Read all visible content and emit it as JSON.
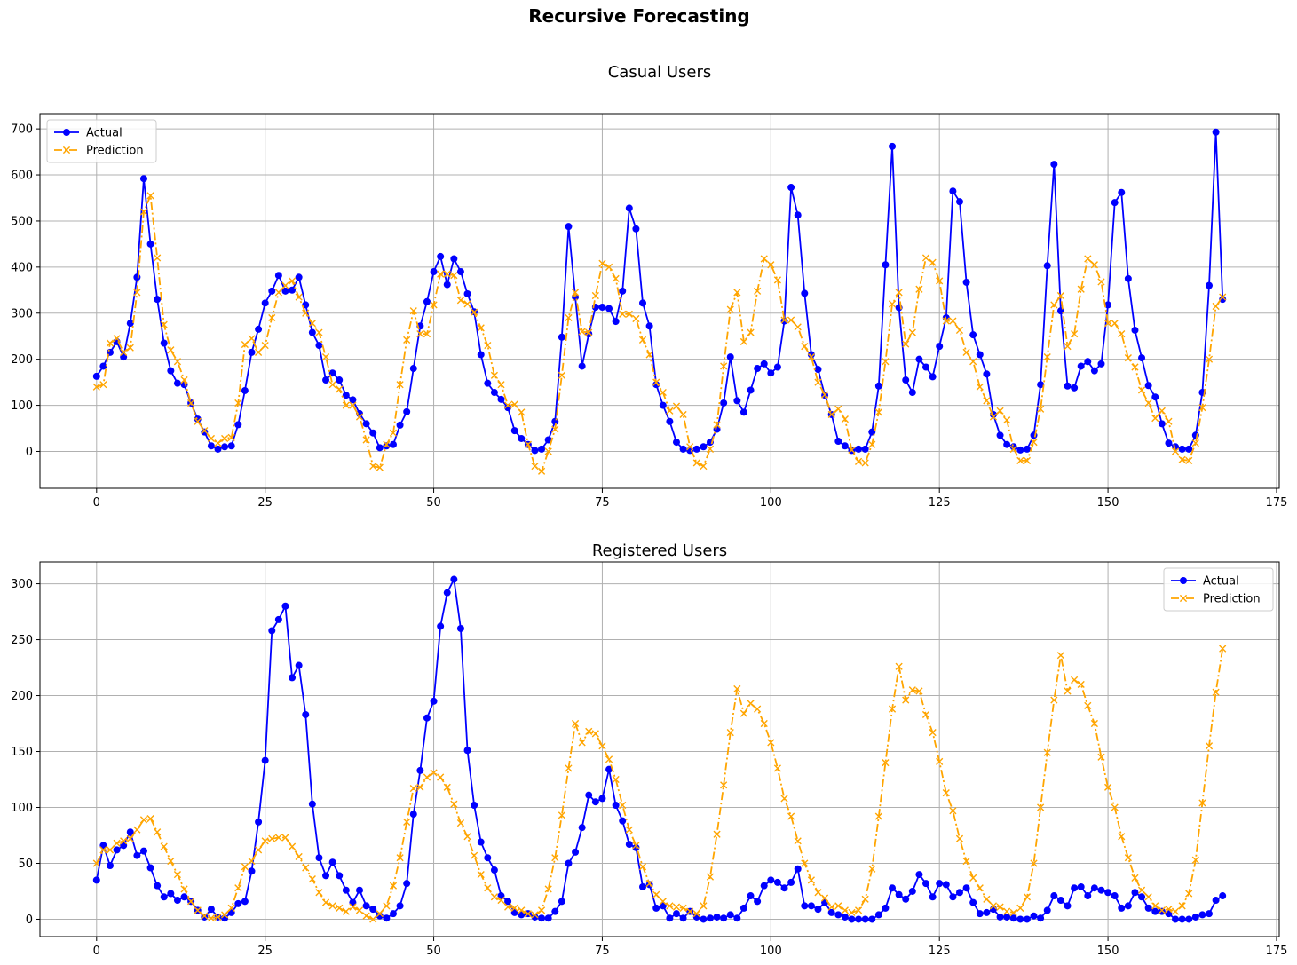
{
  "figure": {
    "suptitle": "Recursive Forecasting"
  },
  "legend_labels": {
    "actual": "Actual",
    "prediction": "Prediction"
  },
  "colors": {
    "actual": "#0000ff",
    "prediction": "#ffa500",
    "grid": "#b0b0b0",
    "axes": "#000000"
  },
  "chart_data": [
    {
      "type": "line",
      "title": "Casual Users",
      "xlabel": "",
      "ylabel": "",
      "xlim": [
        -8.4,
        175.4
      ],
      "ylim": [
        -80,
        733
      ],
      "xticks": [
        0,
        25,
        50,
        75,
        100,
        125,
        150,
        175
      ],
      "yticks": [
        0,
        100,
        200,
        300,
        400,
        500,
        600,
        700
      ],
      "grid": true,
      "legend_position": "upper-left",
      "series": [
        {
          "name": "Actual",
          "style": "solid-circle",
          "values": [
            163,
            185,
            215,
            238,
            205,
            278,
            378,
            592,
            450,
            330,
            235,
            175,
            148,
            145,
            105,
            70,
            42,
            12,
            5,
            10,
            12,
            58,
            132,
            215,
            265,
            322,
            348,
            382,
            348,
            350,
            378,
            318,
            258,
            230,
            155,
            170,
            155,
            122,
            112,
            82,
            60,
            40,
            8,
            12,
            15,
            57,
            86,
            180,
            272,
            325,
            390,
            423,
            362,
            418,
            390,
            342,
            303,
            210,
            148,
            128,
            113,
            95,
            45,
            28,
            15,
            2,
            5,
            25,
            65,
            248,
            488,
            335,
            185,
            255,
            313,
            313,
            310,
            282,
            348,
            528,
            483,
            322,
            272,
            145,
            100,
            65,
            20,
            5,
            2,
            5,
            10,
            20,
            48,
            105,
            205,
            110,
            85,
            133,
            180,
            190,
            170,
            183,
            283,
            573,
            513,
            343,
            210,
            178,
            122,
            80,
            22,
            12,
            2,
            5,
            5,
            42,
            142,
            405,
            662,
            312,
            155,
            128,
            200,
            183,
            162,
            228,
            290,
            565,
            542,
            367,
            253,
            210,
            168,
            80,
            35,
            15,
            10,
            3,
            5,
            35,
            145,
            403,
            623,
            305,
            142,
            138,
            185,
            195,
            175,
            190,
            318,
            540,
            562,
            375,
            263,
            203,
            143,
            118,
            60,
            18,
            10,
            5,
            5,
            35,
            128,
            360,
            693,
            330
          ]
        },
        {
          "name": "Prediction",
          "style": "dashdot-x",
          "values": [
            140,
            145,
            235,
            245,
            215,
            225,
            345,
            520,
            555,
            420,
            275,
            220,
            195,
            155,
            105,
            65,
            45,
            28,
            18,
            28,
            30,
            105,
            232,
            245,
            215,
            230,
            290,
            345,
            360,
            370,
            335,
            300,
            278,
            258,
            205,
            145,
            135,
            100,
            100,
            75,
            25,
            -32,
            -35,
            15,
            40,
            145,
            242,
            305,
            255,
            255,
            318,
            385,
            385,
            382,
            328,
            320,
            302,
            268,
            230,
            165,
            145,
            100,
            102,
            85,
            15,
            -32,
            -43,
            0,
            48,
            165,
            290,
            345,
            260,
            258,
            338,
            408,
            400,
            375,
            298,
            298,
            288,
            242,
            210,
            150,
            128,
            88,
            98,
            80,
            10,
            -25,
            -32,
            5,
            58,
            185,
            308,
            345,
            238,
            258,
            348,
            418,
            405,
            372,
            285,
            285,
            270,
            228,
            205,
            150,
            123,
            80,
            92,
            70,
            3,
            -22,
            -25,
            15,
            85,
            195,
            320,
            345,
            233,
            258,
            352,
            420,
            410,
            370,
            283,
            283,
            263,
            215,
            195,
            140,
            110,
            75,
            88,
            68,
            5,
            -20,
            -20,
            20,
            92,
            205,
            318,
            338,
            228,
            255,
            352,
            418,
            405,
            368,
            278,
            278,
            255,
            203,
            183,
            133,
            105,
            72,
            88,
            65,
            0,
            -18,
            -20,
            18,
            95,
            200,
            315,
            335
          ]
        }
      ]
    },
    {
      "type": "line",
      "title": "Registered Users",
      "xlabel": "",
      "ylabel": "",
      "xlim": [
        -8.4,
        175.4
      ],
      "ylim": [
        -15.5,
        319.5
      ],
      "xticks": [
        0,
        25,
        50,
        75,
        100,
        125,
        150,
        175
      ],
      "yticks": [
        0,
        50,
        100,
        150,
        200,
        250,
        300
      ],
      "grid": true,
      "legend_position": "upper-right",
      "series": [
        {
          "name": "Actual",
          "style": "solid-circle",
          "values": [
            35,
            66,
            48,
            62,
            66,
            78,
            57,
            61,
            46,
            30,
            20,
            23,
            17,
            20,
            16,
            8,
            2,
            9,
            2,
            1,
            6,
            14,
            16,
            43,
            87,
            142,
            258,
            268,
            280,
            216,
            227,
            183,
            103,
            55,
            39,
            51,
            39,
            26,
            15,
            26,
            12,
            9,
            3,
            1,
            5,
            12,
            32,
            94,
            133,
            180,
            195,
            262,
            292,
            304,
            260,
            151,
            102,
            69,
            55,
            44,
            21,
            16,
            6,
            4,
            5,
            2,
            1,
            1,
            7,
            16,
            50,
            60,
            82,
            111,
            105,
            108,
            134,
            102,
            88,
            67,
            64,
            29,
            31,
            10,
            12,
            1,
            5,
            1,
            7,
            2,
            0,
            1,
            2,
            1,
            4,
            1,
            10,
            21,
            16,
            30,
            35,
            33,
            28,
            33,
            45,
            12,
            12,
            9,
            15,
            6,
            4,
            2,
            0,
            0,
            0,
            0,
            4,
            10,
            28,
            22,
            18,
            25,
            40,
            32,
            20,
            32,
            31,
            20,
            24,
            28,
            15,
            5,
            6,
            9,
            2,
            2,
            1,
            0,
            0,
            3,
            1,
            8,
            21,
            17,
            12,
            28,
            29,
            21,
            28,
            26,
            24,
            21,
            10,
            12,
            24,
            20,
            10,
            7,
            7,
            5,
            0,
            0,
            0,
            2,
            4,
            5,
            17,
            21
          ]
        },
        {
          "name": "Prediction",
          "style": "dashdot-x",
          "values": [
            50,
            62,
            62,
            68,
            70,
            72,
            80,
            89,
            90,
            78,
            65,
            52,
            40,
            27,
            16,
            8,
            3,
            1,
            2,
            4,
            10,
            28,
            47,
            52,
            62,
            70,
            72,
            73,
            73,
            65,
            56,
            46,
            36,
            24,
            15,
            12,
            10,
            7,
            11,
            8,
            3,
            0,
            5,
            12,
            30,
            55,
            87,
            117,
            118,
            127,
            131,
            127,
            118,
            103,
            86,
            74,
            57,
            40,
            28,
            20,
            17,
            11,
            10,
            8,
            5,
            4,
            8,
            27,
            55,
            93,
            135,
            175,
            158,
            168,
            166,
            155,
            143,
            125,
            102,
            80,
            66,
            47,
            32,
            22,
            16,
            12,
            11,
            10,
            7,
            5,
            12,
            38,
            76,
            120,
            167,
            206,
            184,
            193,
            188,
            175,
            158,
            135,
            108,
            92,
            70,
            50,
            35,
            24,
            19,
            11,
            12,
            8,
            6,
            8,
            18,
            45,
            92,
            140,
            188,
            226,
            196,
            205,
            204,
            183,
            167,
            141,
            113,
            97,
            72,
            52,
            37,
            28,
            18,
            12,
            11,
            7,
            6,
            10,
            20,
            50,
            100,
            149,
            196,
            236,
            204,
            214,
            210,
            191,
            175,
            145,
            118,
            100,
            74,
            55,
            37,
            26,
            20,
            12,
            8,
            9,
            7,
            12,
            23,
            53,
            104,
            155,
            203,
            242
          ]
        }
      ]
    }
  ]
}
